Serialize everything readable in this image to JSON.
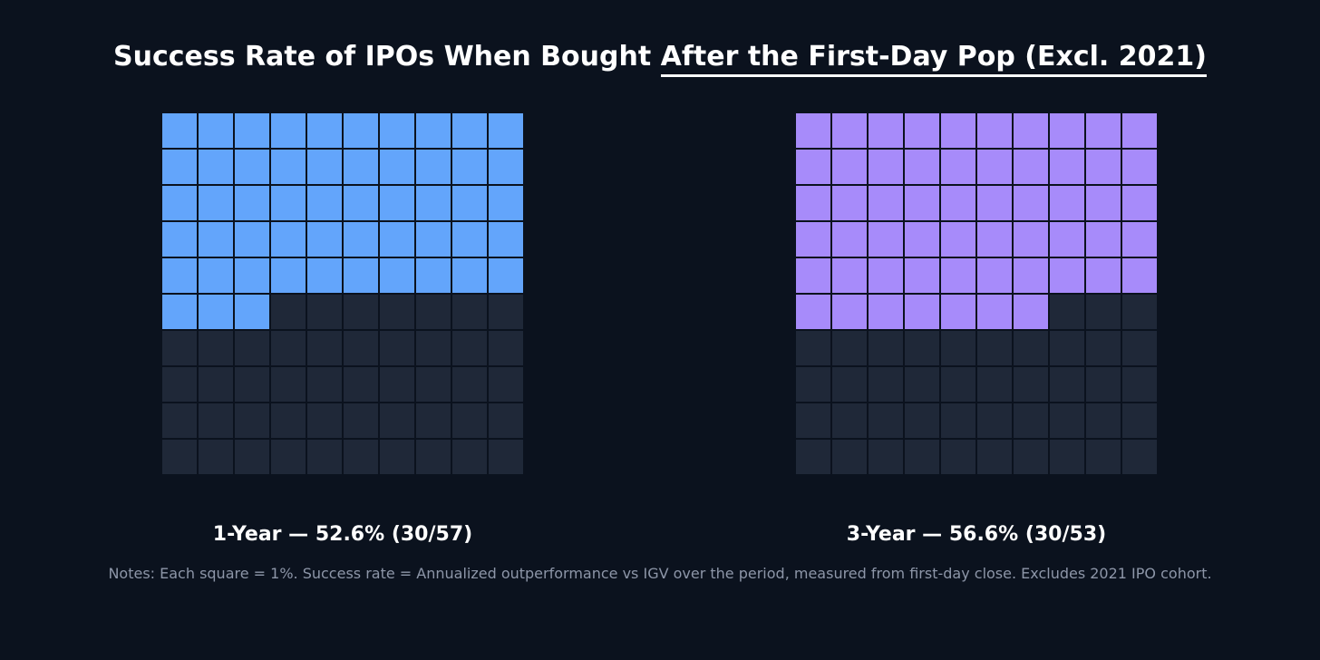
{
  "title": {
    "part1": "Success Rate of IPOs When Bought ",
    "part2": "After the First-Day Pop (Excl. 2021)"
  },
  "colors": {
    "background": "#0b121e",
    "empty": "#1f2838",
    "one_year": "#63a5fb",
    "three_year": "#a78bfa"
  },
  "chart_data": [
    {
      "type": "waffle",
      "grid": [
        10,
        10
      ],
      "unit": "1%",
      "name": "1-Year",
      "filled": 53,
      "rate_percent": 52.6,
      "successes": 30,
      "total": 57,
      "label": "1-Year — 52.6% (30/57)",
      "color_key": "one_year"
    },
    {
      "type": "waffle",
      "grid": [
        10,
        10
      ],
      "unit": "1%",
      "name": "3-Year",
      "filled": 57,
      "rate_percent": 56.6,
      "successes": 30,
      "total": 53,
      "label": "3-Year — 56.6% (30/53)",
      "color_key": "three_year"
    }
  ],
  "notes": "Notes: Each square = 1%. Success rate = Annualized outperformance vs IGV over the period, measured from first-day close. Excludes 2021 IPO cohort."
}
